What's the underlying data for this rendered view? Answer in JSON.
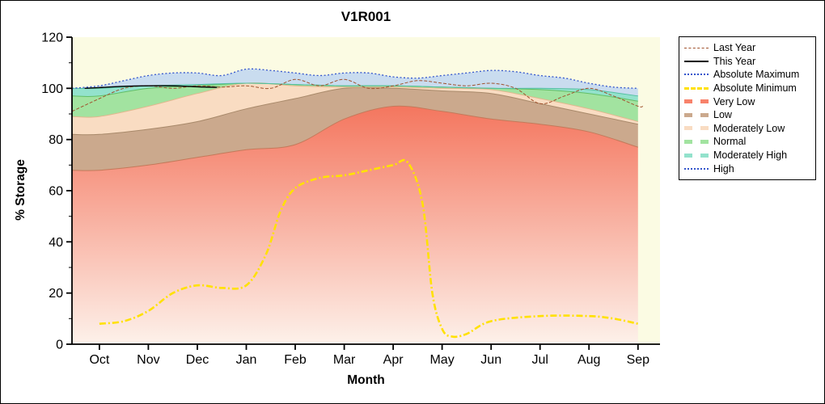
{
  "chart_data": {
    "type": "area",
    "title": "V1R001",
    "xlabel": "Month",
    "ylabel": "% Storage",
    "x_tick_labels": [
      "Oct",
      "Nov",
      "Dec",
      "Jan",
      "Feb",
      "Mar",
      "Apr",
      "May",
      "Jun",
      "Jul",
      "Aug",
      "Sep"
    ],
    "y_ticks": [
      0,
      20,
      40,
      60,
      80,
      100,
      120
    ],
    "ylim": [
      0,
      120
    ],
    "xlim": [
      -0.56,
      11.45
    ],
    "plot_bg": "#FBFBE3",
    "series": [
      {
        "id": "very_low",
        "name": "Very Low band top",
        "x": [
          -0.56,
          0,
          1,
          2,
          3,
          4,
          5,
          6,
          7,
          8,
          9,
          10,
          11
        ],
        "y": [
          68,
          68,
          70,
          73,
          76,
          78,
          88,
          93,
          91,
          88,
          86,
          83,
          77
        ]
      },
      {
        "id": "low",
        "name": "Low band top",
        "x": [
          -0.56,
          0,
          1,
          2,
          3,
          4,
          5,
          6,
          7,
          8,
          9,
          10,
          11
        ],
        "y": [
          82,
          82,
          84,
          87,
          92,
          96,
          100,
          100,
          99,
          98,
          94,
          90,
          86
        ]
      },
      {
        "id": "mod_low",
        "name": "Moderately Low band top",
        "x": [
          -0.56,
          0,
          1,
          2,
          3,
          4,
          5,
          6,
          7,
          8,
          9,
          10,
          11
        ],
        "y": [
          89,
          89,
          93,
          98,
          102,
          101,
          100.5,
          100.5,
          100,
          99.5,
          96,
          92,
          87
        ]
      },
      {
        "id": "normal",
        "name": "Normal band top",
        "x": [
          -0.56,
          0,
          1,
          2,
          3,
          4,
          5,
          6,
          7,
          8,
          9,
          10,
          11
        ],
        "y": [
          97,
          97,
          100,
          101,
          102,
          101.5,
          101,
          101,
          100.5,
          100,
          99.5,
          98,
          95
        ]
      },
      {
        "id": "mod_high",
        "name": "Moderately High band top",
        "x": [
          -0.56,
          0,
          1,
          2,
          3,
          4,
          5,
          6,
          7,
          8,
          9,
          10,
          11
        ],
        "y": [
          100,
          100,
          101,
          101.5,
          102,
          101.5,
          101,
          101,
          100.5,
          100,
          100,
          99.5,
          97
        ]
      },
      {
        "id": "abs_max",
        "name": "Absolute Maximum",
        "x": [
          -0.56,
          0,
          0.5,
          1,
          1.5,
          2,
          2.5,
          3,
          3.5,
          4,
          4.5,
          5,
          5.5,
          6,
          6.5,
          7,
          7.5,
          8,
          8.5,
          9,
          9.5,
          10,
          10.5,
          11
        ],
        "y": [
          100,
          101,
          103,
          105,
          106,
          106,
          105,
          107.5,
          107,
          106,
          105,
          106,
          106,
          104.5,
          104,
          105,
          106,
          107,
          106.5,
          105,
          104,
          102,
          100.5,
          100
        ],
        "style": {
          "color": "#3355CC",
          "width": 1.3,
          "dash": "2 2.5"
        }
      },
      {
        "id": "abs_min",
        "name": "Absolute Minimum",
        "x": [
          0,
          0.5,
          1,
          1.5,
          2,
          2.5,
          3,
          3.4,
          3.7,
          4,
          4.5,
          5,
          5.5,
          6,
          6.3,
          6.6,
          6.8,
          7,
          7.2,
          7.5,
          8,
          9,
          10,
          10.5,
          11
        ],
        "y": [
          8,
          9,
          13,
          20,
          23,
          22,
          23,
          35,
          52,
          61,
          65,
          66,
          68,
          70,
          71,
          55,
          20,
          6,
          3,
          4,
          9,
          11,
          11,
          10,
          8
        ],
        "style": {
          "color": "#FFE100",
          "width": 2.6,
          "dash": "8 3 2 3"
        }
      },
      {
        "id": "last_year",
        "name": "Last Year",
        "x": [
          -0.56,
          0,
          0.5,
          1,
          1.5,
          2,
          2.5,
          3,
          3.5,
          4,
          4.5,
          5,
          5.5,
          6,
          6.5,
          7,
          7.5,
          8,
          8.5,
          9,
          9.5,
          10,
          10.5,
          11,
          11.1
        ],
        "y": [
          91,
          96,
          100,
          101,
          100,
          101,
          100.5,
          101,
          100,
          103.5,
          101,
          103.5,
          100,
          101,
          103,
          102,
          101,
          102,
          100,
          94,
          97,
          100,
          97,
          93,
          93
        ],
        "style": {
          "color": "#A0522D",
          "width": 1,
          "dash": "4 2"
        }
      },
      {
        "id": "this_year",
        "name": "This Year",
        "x": [
          -0.3,
          0,
          0.5,
          1,
          1.5,
          2,
          2.4
        ],
        "y": [
          100,
          100.3,
          100.8,
          101,
          101,
          100.6,
          100.4
        ],
        "style": {
          "color": "#000000",
          "width": 1.4
        }
      }
    ],
    "bands": [
      {
        "name": "Very Low",
        "upper": "very_low",
        "lower": null,
        "fill_top": "#F4745C",
        "fill_bottom": "#FDF1EA",
        "edge": "#C4795A"
      },
      {
        "name": "Low",
        "upper": "low",
        "lower": "very_low",
        "fill": "#CBA98D",
        "edge": "#A8896A"
      },
      {
        "name": "Moderately Low",
        "upper": "mod_low",
        "lower": "low",
        "fill": "#F9DCC2",
        "edge": "#E0B88E"
      },
      {
        "name": "Normal",
        "upper": "normal",
        "lower": "mod_low",
        "fill": "#A2E3A0",
        "edge": "#62BE66"
      },
      {
        "name": "Moderately High",
        "upper": "mod_high",
        "lower": "normal",
        "fill": "#93E2CC",
        "edge": "#52BFA0"
      },
      {
        "name": "High",
        "upper": "abs_max",
        "lower": "mod_high",
        "fill": "#C9DCEF",
        "edge": null
      }
    ]
  },
  "legend": {
    "items": [
      {
        "label": "Last Year",
        "swatch": {
          "color": "#A0522D",
          "height": 1,
          "style": "dashed"
        }
      },
      {
        "label": "This Year",
        "swatch": {
          "color": "#000000",
          "height": 2,
          "style": "solid"
        }
      },
      {
        "label": "Absolute Maximum",
        "swatch": {
          "color": "#3355CC",
          "height": 2,
          "style": "dotted"
        }
      },
      {
        "label": "Absolute Minimum",
        "swatch": {
          "color": "#FFE100",
          "height": 3,
          "style": "dashed"
        }
      },
      {
        "label": "Very Low",
        "swatch": {
          "color": "#F8826A",
          "height": 5,
          "style": "dashed"
        }
      },
      {
        "label": "Low",
        "swatch": {
          "color": "#CBA98D",
          "height": 5,
          "style": "dashed"
        }
      },
      {
        "label": "Moderately Low",
        "swatch": {
          "color": "#F9DCC2",
          "height": 5,
          "style": "dashed"
        }
      },
      {
        "label": "Normal",
        "swatch": {
          "color": "#A2E3A0",
          "height": 5,
          "style": "dashed"
        }
      },
      {
        "label": "Moderately High",
        "swatch": {
          "color": "#93E2CC",
          "height": 5,
          "style": "dashed"
        }
      },
      {
        "label": "High",
        "swatch": {
          "color": "#3355CC",
          "height": 2,
          "style": "dotted"
        }
      }
    ]
  }
}
